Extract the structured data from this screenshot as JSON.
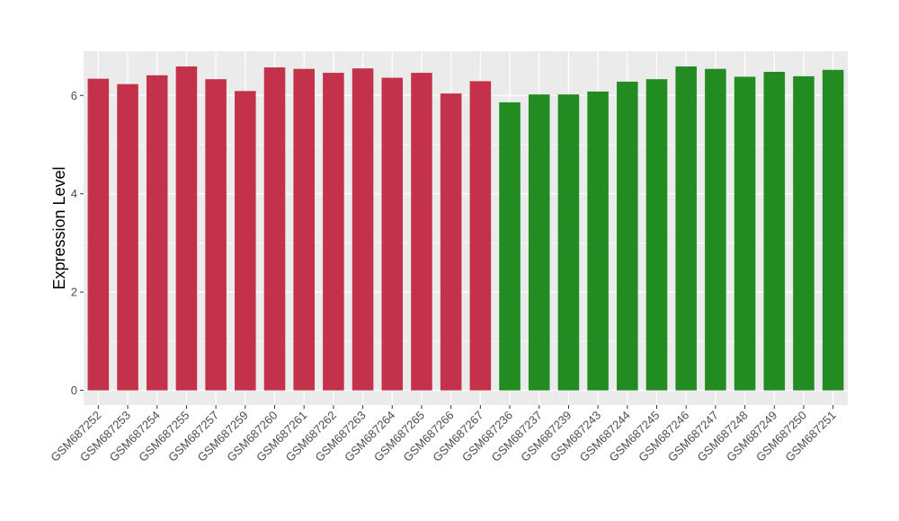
{
  "chart_data": {
    "type": "bar",
    "title": "",
    "xlabel": "",
    "ylabel": "Expression Level",
    "ylim": [
      -0.3,
      6.9
    ],
    "yticks": [
      0,
      2,
      4,
      6
    ],
    "grid": true,
    "legend": "none",
    "categories": [
      "GSM687252",
      "GSM687253",
      "GSM687254",
      "GSM687255",
      "GSM687257",
      "GSM687259",
      "GSM687260",
      "GSM687261",
      "GSM687262",
      "GSM687263",
      "GSM687264",
      "GSM687265",
      "GSM687266",
      "GSM687267",
      "GSM687236",
      "GSM687237",
      "GSM687239",
      "GSM687243",
      "GSM687244",
      "GSM687245",
      "GSM687246",
      "GSM687247",
      "GSM687248",
      "GSM687249",
      "GSM687250",
      "GSM687251"
    ],
    "values": [
      6.34,
      6.23,
      6.41,
      6.59,
      6.33,
      6.09,
      6.57,
      6.54,
      6.46,
      6.55,
      6.36,
      6.46,
      6.04,
      6.29,
      5.86,
      6.02,
      6.02,
      6.08,
      6.28,
      6.33,
      6.59,
      6.54,
      6.38,
      6.48,
      6.39,
      6.52
    ],
    "groups": [
      "a",
      "a",
      "a",
      "a",
      "a",
      "a",
      "a",
      "a",
      "a",
      "a",
      "a",
      "a",
      "a",
      "a",
      "b",
      "b",
      "b",
      "b",
      "b",
      "b",
      "b",
      "b",
      "b",
      "b",
      "b",
      "b"
    ],
    "colors": {
      "a": "#c4314b",
      "b": "#228b22"
    }
  }
}
